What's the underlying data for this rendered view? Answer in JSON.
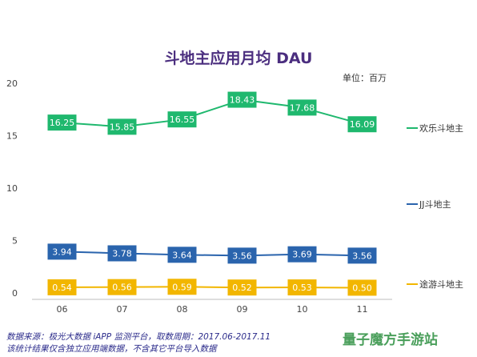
{
  "chart_data": {
    "type": "line",
    "title": "斗地主应用月均 DAU",
    "unit_label": "单位：百万",
    "categories": [
      "06",
      "07",
      "08",
      "09",
      "10",
      "11"
    ],
    "ylim": [
      0,
      20
    ],
    "yticks": [
      0,
      5,
      10,
      15,
      20
    ],
    "grid": false,
    "legend_position": "right",
    "series": [
      {
        "name": "欢乐斗地主",
        "color": "#1fb86e",
        "values": [
          16.25,
          15.85,
          16.55,
          18.43,
          17.68,
          16.09
        ]
      },
      {
        "name": "JJ斗地主",
        "color": "#2a64ad",
        "values": [
          3.94,
          3.78,
          3.64,
          3.56,
          3.69,
          3.56
        ]
      },
      {
        "name": "途游斗地主",
        "color": "#f2b600",
        "values": [
          0.54,
          0.56,
          0.59,
          0.52,
          0.53,
          0.5
        ]
      }
    ]
  },
  "footnotes": [
    "数据来源：极光大数据 iAPP 监测平台，取数周期：2017.06-2017.11",
    "该统计结果仅含独立应用端数据，不含其它平台导入数据"
  ],
  "watermark": "量子魔方手游站"
}
